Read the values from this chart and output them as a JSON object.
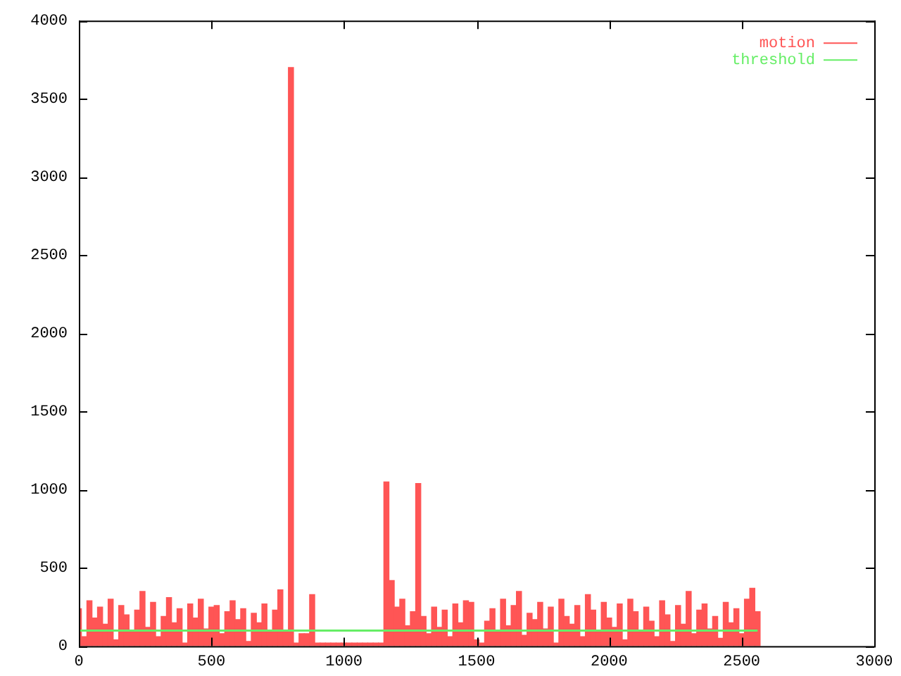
{
  "chart_data": {
    "type": "bar",
    "xlim": [
      0,
      3000
    ],
    "xticks": [
      0,
      500,
      1000,
      1500,
      2000,
      2500,
      3000
    ],
    "ylim": [
      0,
      4000
    ],
    "yticks": [
      0,
      500,
      1000,
      1500,
      2000,
      2500,
      3000,
      3500,
      4000
    ],
    "grid": false,
    "legend": "top right",
    "series": [
      {
        "name": "motion",
        "color": "#ff5555",
        "x": [
          0,
          20,
          40,
          60,
          80,
          100,
          120,
          140,
          160,
          180,
          200,
          220,
          240,
          260,
          280,
          300,
          320,
          340,
          360,
          380,
          400,
          420,
          440,
          460,
          480,
          500,
          520,
          540,
          560,
          580,
          600,
          620,
          640,
          660,
          680,
          700,
          720,
          740,
          760,
          780,
          800,
          820,
          840,
          860,
          880,
          900,
          920,
          940,
          960,
          980,
          1000,
          1020,
          1040,
          1060,
          1080,
          1100,
          1120,
          1140,
          1160,
          1180,
          1200,
          1220,
          1240,
          1260,
          1280,
          1300,
          1320,
          1340,
          1360,
          1380,
          1400,
          1420,
          1440,
          1460,
          1480,
          1500,
          1520,
          1540,
          1560,
          1580,
          1600,
          1620,
          1640,
          1660,
          1680,
          1700,
          1720,
          1740,
          1760,
          1780,
          1800,
          1820,
          1840,
          1860,
          1880,
          1900,
          1920,
          1940,
          1960,
          1980,
          2000,
          2020,
          2040,
          2060,
          2080,
          2100,
          2120,
          2140,
          2160,
          2180,
          2200,
          2220,
          2240,
          2260,
          2280,
          2300,
          2320,
          2340,
          2360,
          2380,
          2400,
          2420,
          2440,
          2460,
          2480,
          2500,
          2520,
          2540,
          2560
        ],
        "values": [
          240,
          60,
          290,
          180,
          250,
          140,
          300,
          40,
          260,
          200,
          90,
          230,
          350,
          120,
          280,
          60,
          190,
          310,
          150,
          240,
          20,
          270,
          180,
          300,
          110,
          250,
          260,
          80,
          220,
          290,
          170,
          240,
          30,
          210,
          150,
          270,
          90,
          230,
          360,
          100,
          3700,
          20,
          80,
          80,
          330,
          20,
          20,
          20,
          20,
          20,
          20,
          20,
          20,
          20,
          20,
          20,
          20,
          20,
          1050,
          420,
          250,
          300,
          130,
          220,
          1040,
          190,
          80,
          250,
          120,
          230,
          60,
          270,
          150,
          290,
          280,
          40,
          20,
          160,
          240,
          100,
          300,
          130,
          260,
          350,
          70,
          210,
          170,
          280,
          110,
          250,
          20,
          300,
          190,
          140,
          260,
          60,
          330,
          230,
          90,
          280,
          180,
          120,
          270,
          40,
          300,
          220,
          100,
          250,
          160,
          60,
          290,
          200,
          30,
          260,
          140,
          350,
          80,
          230,
          270,
          110,
          190,
          50,
          280,
          150,
          240,
          80,
          300,
          370,
          220
        ]
      },
      {
        "name": "threshold",
        "type": "line",
        "color": "#66ee66",
        "x": [
          0,
          2560
        ],
        "values": [
          100,
          100
        ]
      }
    ]
  }
}
